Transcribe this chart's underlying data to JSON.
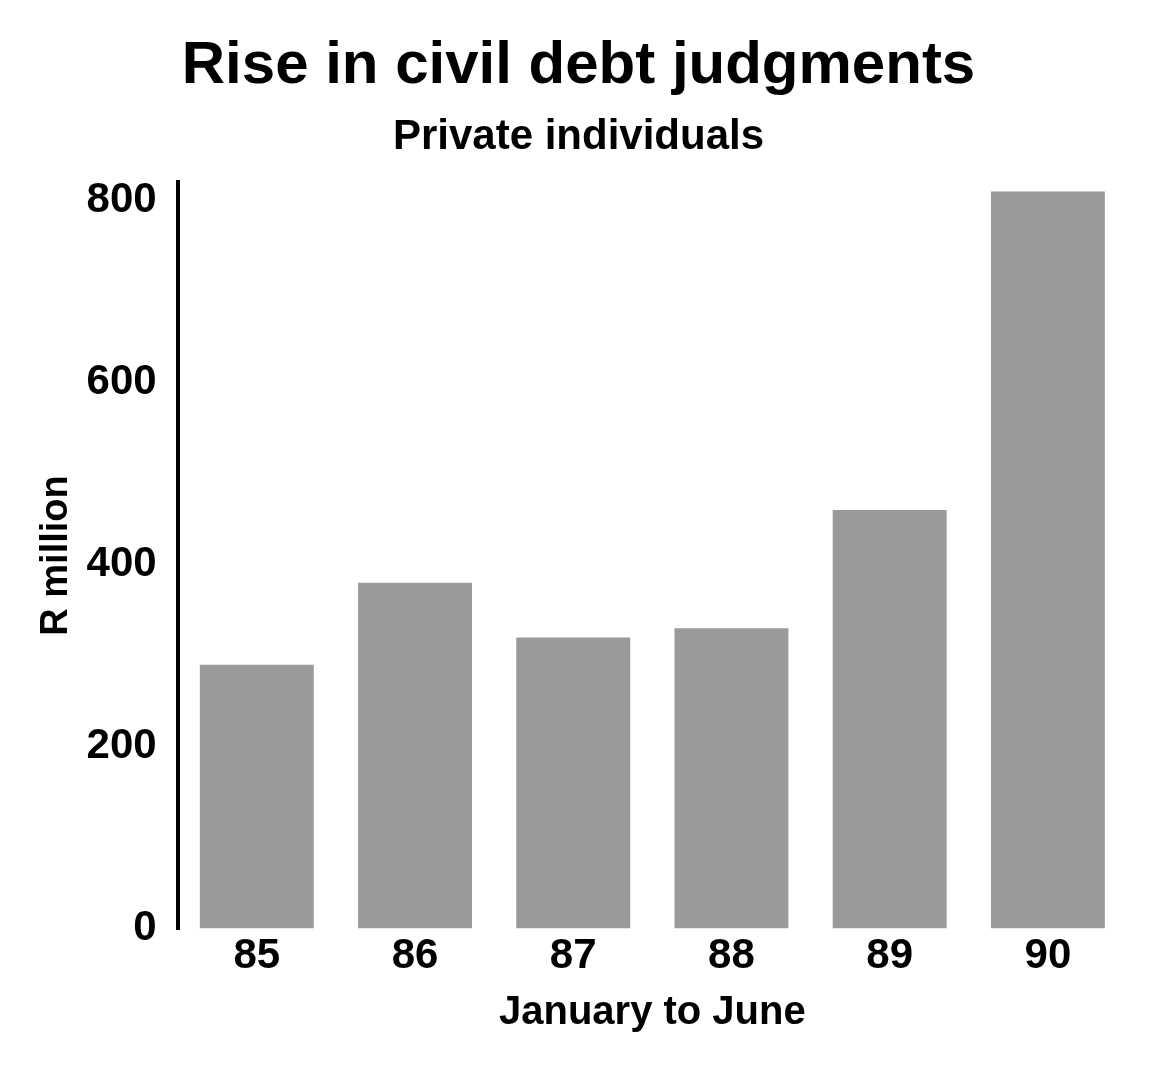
{
  "chart_data": {
    "type": "bar",
    "title": "Rise in civil debt judgments",
    "subtitle": "Private individuals",
    "ylabel": "R million",
    "xlabel": "January to June",
    "categories": [
      "85",
      "86",
      "87",
      "88",
      "89",
      "90"
    ],
    "values": [
      290,
      380,
      320,
      330,
      460,
      810
    ],
    "color": "#9a9a9a",
    "ylim": [
      0,
      820
    ],
    "yticks": [
      0,
      200,
      400,
      600,
      800
    ],
    "grid": false,
    "legend": false
  }
}
